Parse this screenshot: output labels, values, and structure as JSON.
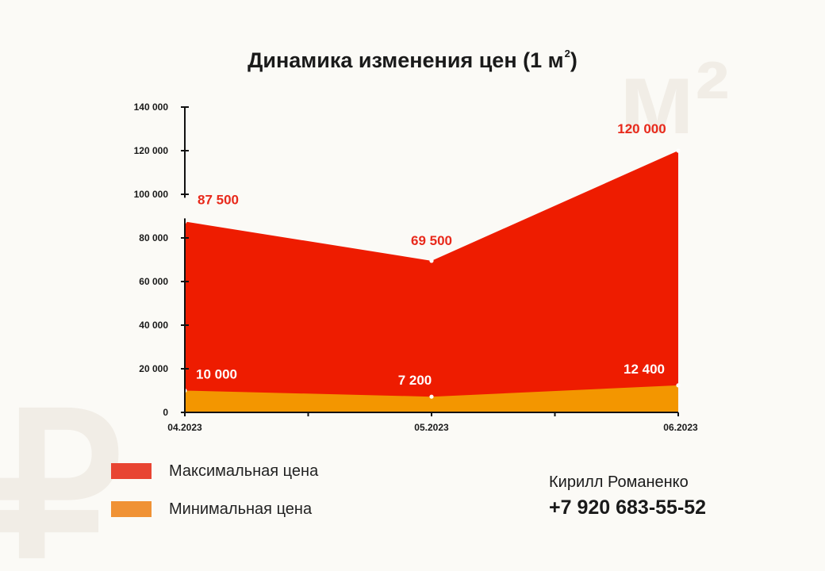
{
  "title": "Динамика изменения цен (1 м",
  "title_superscript": "2",
  "watermarks": {
    "area_unit": "м²",
    "currency": "₽"
  },
  "chart_data": {
    "type": "area",
    "categories": [
      "04.2023",
      "05.2023",
      "06.2023"
    ],
    "series": [
      {
        "name": "Максимальная цена",
        "values": [
          87500,
          69500,
          120000
        ],
        "labels": [
          "87 500",
          "69 500",
          "120 000"
        ],
        "color": "#ee1c00",
        "label_color": "#e8291b"
      },
      {
        "name": "Минимальная цена",
        "values": [
          10000,
          7200,
          12400
        ],
        "labels": [
          "10 000",
          "7 200",
          "12 400"
        ],
        "color": "#f39600",
        "label_color": "#ffffff"
      }
    ],
    "y_ticks": [
      0,
      20000,
      40000,
      60000,
      80000,
      100000,
      120000,
      140000
    ],
    "y_tick_labels": [
      "0",
      "20 000",
      "40 000",
      "60 000",
      "80 000",
      "100 000",
      "120 000",
      "140 000"
    ],
    "ylim": [
      0,
      140000
    ],
    "grid": false
  },
  "legend": {
    "items": [
      {
        "label": "Максимальная цена",
        "color": "#e84432"
      },
      {
        "label": "Минимальная цена",
        "color": "#f09235"
      }
    ]
  },
  "contact": {
    "name": "Кирилл Романенко",
    "phone": "+7 920 683-55-52"
  }
}
